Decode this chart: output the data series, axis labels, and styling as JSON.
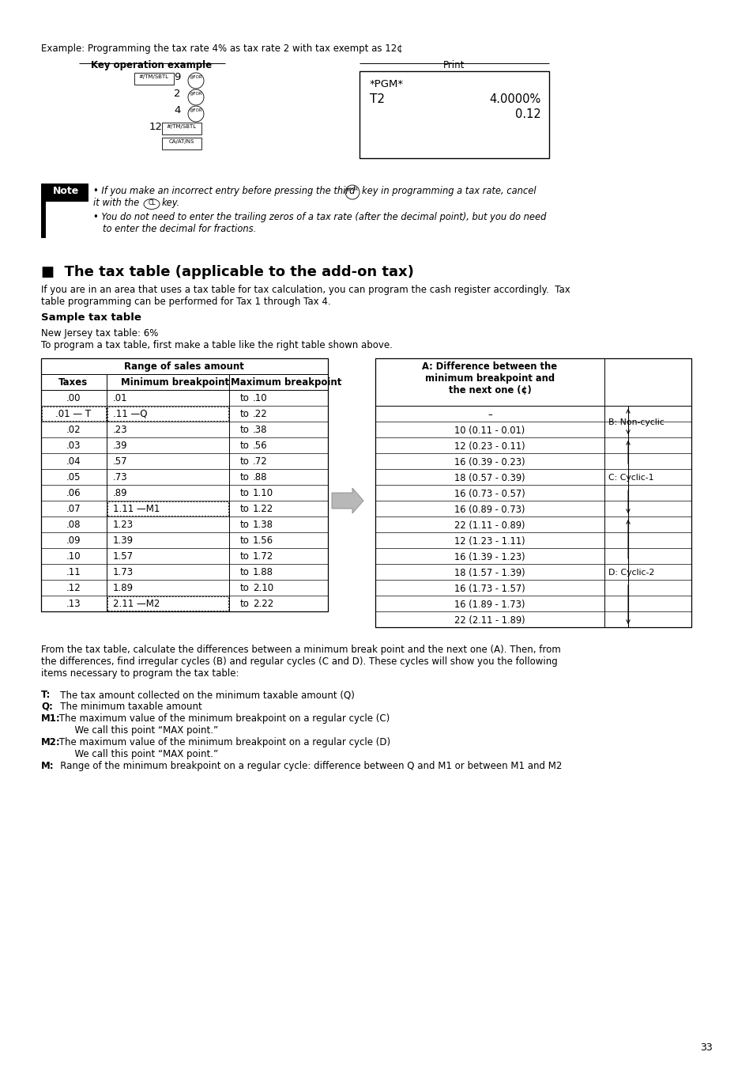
{
  "page_bg": "#ffffff",
  "example_line": "Example: Programming the tax rate 4% as tax rate 2 with tax exempt as 12¢",
  "key_op_label": "Key operation example",
  "print_label": "Print",
  "print_pgm": "*PGM*",
  "print_t2": "T2",
  "print_rate": "4.0000%",
  "print_val": "0.12",
  "note_1a": "• If you make an incorrect entry before pressing the third",
  "note_1b": "key in programming a tax rate, cancel",
  "note_2a": "it with the",
  "note_2b": "key.",
  "note_3": "• You do not need to enter the trailing zeros of a tax rate (after the decimal point), but you do need",
  "note_4": "to enter the decimal for fractions.",
  "section_title": "■  The tax table (applicable to the add-on tax)",
  "para1": "If you are in an area that uses a tax table for tax calculation, you can program the cash register accordingly.  Tax",
  "para1b": "table programming can be performed for Tax 1 through Tax 4.",
  "sample_title": "Sample tax table",
  "nj_line": "New Jersey tax table: 6%",
  "prog_line": "To program a tax table, first make a table like the right table shown above.",
  "lt_header": "Range of sales amount",
  "lt_col1": "Taxes",
  "lt_col2": "Minimum breakpoint",
  "lt_col3": "Maximum breakpoint",
  "lt_rows": [
    [
      ".00",
      ".01",
      "to",
      ".10",
      false,
      false
    ],
    [
      ".01 — T",
      ".11 —Q",
      "to",
      ".22",
      true,
      true
    ],
    [
      ".02",
      ".23",
      "to",
      ".38",
      false,
      false
    ],
    [
      ".03",
      ".39",
      "to",
      ".56",
      false,
      false
    ],
    [
      ".04",
      ".57",
      "to",
      ".72",
      false,
      false
    ],
    [
      ".05",
      ".73",
      "to",
      ".88",
      false,
      false
    ],
    [
      ".06",
      ".89",
      "to",
      "1.10",
      false,
      false
    ],
    [
      ".07",
      "1.11 —M1",
      "to",
      "1.22",
      false,
      true
    ],
    [
      ".08",
      "1.23",
      "to",
      "1.38",
      false,
      false
    ],
    [
      ".09",
      "1.39",
      "to",
      "1.56",
      false,
      false
    ],
    [
      ".10",
      "1.57",
      "to",
      "1.72",
      false,
      false
    ],
    [
      ".11",
      "1.73",
      "to",
      "1.88",
      false,
      false
    ],
    [
      ".12",
      "1.89",
      "to",
      "2.10",
      false,
      false
    ],
    [
      ".13",
      "2.11 —M2",
      "to",
      "2.22",
      false,
      true
    ]
  ],
  "rt_header": "A: Difference between the\nminimum breakpoint and\nthe next one (¢)",
  "rt_rows": [
    "–",
    "10 (0.11 - 0.01)",
    "12 (0.23 - 0.11)",
    "16 (0.39 - 0.23)",
    "18 (0.57 - 0.39)",
    "16 (0.73 - 0.57)",
    "16 (0.89 - 0.73)",
    "22 (1.11 - 0.89)",
    "12 (1.23 - 1.11)",
    "16 (1.39 - 1.23)",
    "18 (1.57 - 1.39)",
    "16 (1.73 - 1.57)",
    "16 (1.89 - 1.73)",
    "22 (2.11 - 1.89)"
  ],
  "b_label": "B: Non-cyclic",
  "c_label": "C: Cyclic-1",
  "d_label": "D: Cyclic-2",
  "bottom_para": [
    "From the tax table, calculate the differences between a minimum break point and the next one (A). Then, from",
    "the differences, find irregular cycles (B) and regular cycles (C and D). These cycles will show you the following",
    "items necessary to program the tax table:"
  ],
  "items": [
    {
      "bold": "T:",
      "rest": "   The tax amount collected on the minimum taxable amount (Q)"
    },
    {
      "bold": "Q:",
      "rest": "   The minimum taxable amount"
    },
    {
      "bold": "M1:",
      "rest": " The maximum value of the minimum breakpoint on a regular cycle (C)"
    },
    {
      "bold": "",
      "rest": "      We call this point “MAX point.”",
      "indent": true
    },
    {
      "bold": "M2:",
      "rest": " The maximum value of the minimum breakpoint on a regular cycle (D)"
    },
    {
      "bold": "",
      "rest": "      We call this point “MAX point.”",
      "indent": true
    },
    {
      "bold": "M:",
      "rest": "   Range of the minimum breakpoint on a regular cycle: difference between Q and M1 or between M1 and M2"
    }
  ],
  "page_number": "33"
}
